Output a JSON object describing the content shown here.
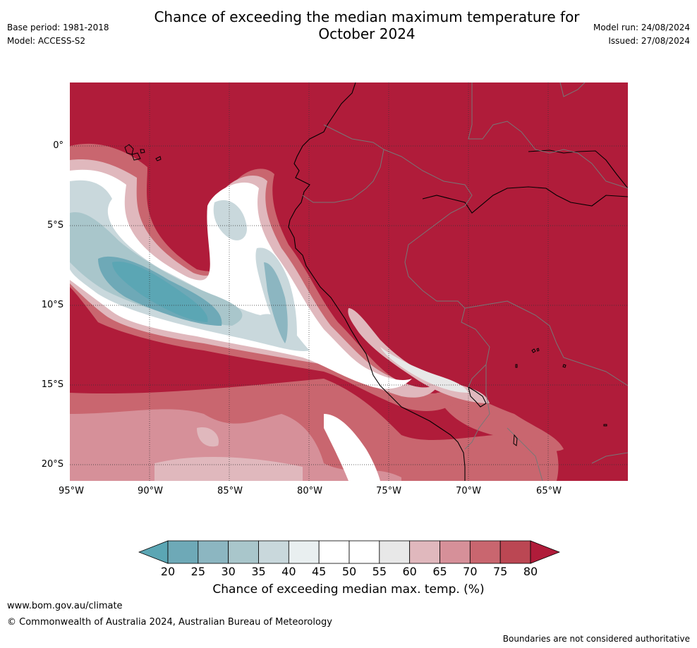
{
  "header": {
    "title_line1": "Chance of exceeding the median maximum temperature for",
    "title_line2": "October 2024",
    "base_period": "Base period: 1981-2018",
    "model": "Model: ACCESS-S2",
    "model_run": "Model run: 24/08/2024",
    "issued": "Issued: 27/08/2024"
  },
  "axes": {
    "lat_labels": [
      "0°",
      "5°S",
      "10°S",
      "15°S",
      "20°S"
    ],
    "lat_values": [
      0,
      -5,
      -10,
      -15,
      -20
    ],
    "lon_labels": [
      "95°W",
      "90°W",
      "85°W",
      "80°W",
      "75°W",
      "70°W",
      "65°W"
    ],
    "lon_values": [
      -95,
      -90,
      -85,
      -80,
      -75,
      -70,
      -65
    ],
    "lon_range": [
      -95,
      -60
    ],
    "lat_range": [
      -21,
      4
    ]
  },
  "colorbar": {
    "ticks": [
      "20",
      "25",
      "30",
      "35",
      "40",
      "45",
      "50",
      "55",
      "60",
      "65",
      "70",
      "75",
      "80"
    ],
    "colors": [
      "#5ba6b4",
      "#6ea9b7",
      "#8cb6c1",
      "#a9c6cb",
      "#c9d8dc",
      "#e9eff0",
      "#ffffff",
      "#ffffff",
      "#e8e8e8",
      "#e0b8bd",
      "#d69099",
      "#c9666f",
      "#bb4753",
      "#b01c3a"
    ],
    "label": "Chance of exceeding median max. temp. (%)"
  },
  "footer": {
    "website": "www.bom.gov.au/climate",
    "copyright": "© Commonwealth of Australia 2024, Australian Bureau of Meteorology",
    "disclaimer": "Boundaries are not considered authoritative"
  }
}
